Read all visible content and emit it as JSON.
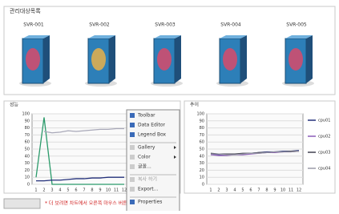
{
  "panel_title": "관리대상목록",
  "servers": [
    "SVR-001",
    "SVR-002",
    "SVR-003",
    "SVR-004",
    "SVR-005"
  ],
  "charts": [
    {
      "type": "line",
      "title": "성능",
      "categories": [
        "1",
        "2",
        "3",
        "4",
        "5",
        "6",
        "7",
        "8",
        "9",
        "10",
        "11",
        "12"
      ],
      "ylim": [
        0,
        100
      ],
      "yticks": [
        0,
        10,
        20,
        30,
        40,
        50,
        60,
        70,
        80,
        90,
        100
      ],
      "grid": true,
      "series": [
        {
          "color": "#2a9a6a",
          "values": [
            10,
            95,
            0,
            0,
            0,
            0,
            0,
            0,
            0,
            0,
            0,
            0
          ]
        },
        {
          "color": "#a8a8b8",
          "values": [
            null,
            75,
            73,
            74,
            76,
            75,
            76,
            77,
            78,
            78,
            79,
            79
          ]
        },
        {
          "color": "#23307a",
          "values": [
            5,
            5,
            6,
            6,
            7,
            8,
            8,
            9,
            9,
            10,
            10,
            10
          ]
        }
      ]
    },
    {
      "type": "line",
      "title": "추이",
      "categories": [
        "1",
        "2",
        "3",
        "4",
        "5",
        "6",
        "7",
        "8",
        "9",
        "10",
        "11",
        "12"
      ],
      "ylim": [
        0,
        100
      ],
      "yticks": [
        0,
        10,
        20,
        30,
        40,
        50,
        60,
        70,
        80,
        90,
        100
      ],
      "grid": true,
      "series": [
        {
          "name": "cpu01",
          "color": "#23307a",
          "values": [
            43,
            42,
            42,
            43,
            43,
            44,
            45,
            46,
            46,
            47,
            47,
            48
          ]
        },
        {
          "name": "cpu02",
          "color": "#8a5ab8",
          "values": [
            42,
            41,
            41,
            42,
            42,
            43,
            44,
            45,
            45,
            46,
            46,
            47
          ]
        },
        {
          "name": "cpu03",
          "color": "#404050",
          "values": [
            44,
            43,
            43,
            43,
            44,
            44,
            45,
            45,
            46,
            46,
            47,
            47
          ]
        },
        {
          "name": "cpu04",
          "color": "#9a9aa8",
          "values": [
            43,
            43,
            42,
            42,
            43,
            44,
            44,
            45,
            46,
            46,
            46,
            47
          ]
        }
      ]
    }
  ],
  "menu": [
    "Toolbar",
    "Data Editor",
    "Legend Box",
    "Gallery",
    "Color",
    "글꼴...",
    "복사 하기",
    "Export...",
    "Properties"
  ],
  "note": "* 더 보려면 차트에서 오른쪽 마우스 버튼을 클릭하세요."
}
